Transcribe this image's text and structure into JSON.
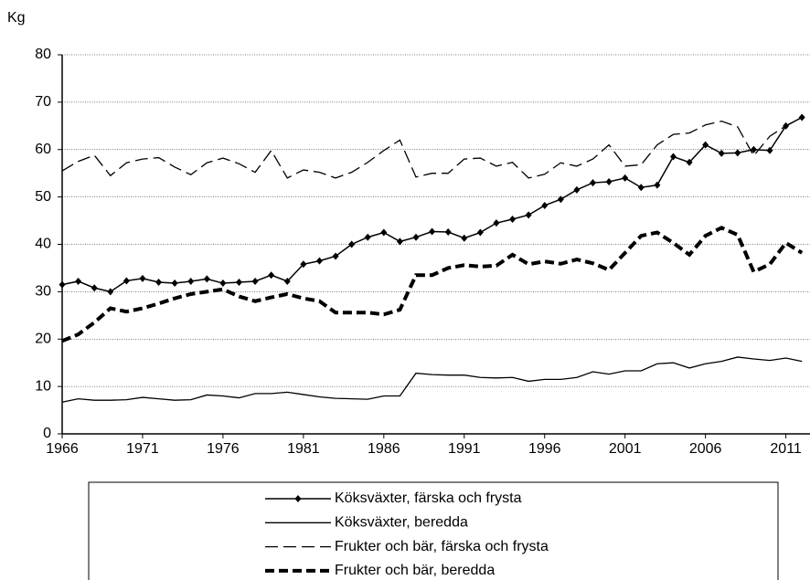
{
  "chart_data": {
    "type": "line",
    "y_label": "Kg",
    "x": [
      1966,
      1967,
      1968,
      1969,
      1970,
      1971,
      1972,
      1973,
      1974,
      1975,
      1976,
      1977,
      1978,
      1979,
      1980,
      1981,
      1982,
      1983,
      1984,
      1985,
      1986,
      1987,
      1988,
      1989,
      1990,
      1991,
      1992,
      1993,
      1994,
      1995,
      1996,
      1997,
      1998,
      1999,
      2000,
      2001,
      2002,
      2003,
      2004,
      2005,
      2006,
      2007,
      2008,
      2009,
      2010,
      2011,
      2012
    ],
    "xlim": [
      1966,
      2012.5
    ],
    "xticks": [
      1966,
      1971,
      1976,
      1981,
      1986,
      1991,
      1996,
      2001,
      2006,
      2011
    ],
    "ylim": [
      0,
      80
    ],
    "yticks": [
      0,
      10,
      20,
      30,
      40,
      50,
      60,
      70,
      80
    ],
    "grid": true,
    "series": [
      {
        "name": "Köksväxter, färska och frysta",
        "color": "#000000",
        "dash": "none",
        "width": 1.5,
        "marker": "diamond",
        "values": [
          31.5,
          32.2,
          30.8,
          30.0,
          32.3,
          32.8,
          32.0,
          31.8,
          32.2,
          32.7,
          31.8,
          32.0,
          32.2,
          33.5,
          32.2,
          35.8,
          36.5,
          37.5,
          40.0,
          41.5,
          42.5,
          40.6,
          41.5,
          42.7,
          42.6,
          41.3,
          42.5,
          44.5,
          45.3,
          46.2,
          48.2,
          49.5,
          51.5,
          53.0,
          53.2,
          54.0,
          52.0,
          52.5,
          58.5,
          57.3,
          61.0,
          59.2,
          59.3,
          60.0,
          59.8,
          65.0,
          66.8
        ]
      },
      {
        "name": "Köksväxter, beredda",
        "color": "#000000",
        "dash": "none",
        "width": 1.3,
        "marker": "none",
        "values": [
          6.7,
          7.4,
          7.1,
          7.1,
          7.2,
          7.7,
          7.4,
          7.1,
          7.2,
          8.2,
          8.0,
          7.6,
          8.5,
          8.5,
          8.8,
          8.3,
          7.8,
          7.5,
          7.4,
          7.3,
          8.0,
          8.0,
          12.8,
          12.5,
          12.4,
          12.4,
          11.9,
          11.8,
          11.9,
          11.1,
          11.5,
          11.5,
          11.9,
          13.1,
          12.6,
          13.3,
          13.3,
          14.8,
          15.0,
          13.9,
          14.8,
          15.3,
          16.2,
          15.8,
          15.5,
          16.0,
          15.3
        ]
      },
      {
        "name": "Frukter och bär, färska och frysta",
        "color": "#000000",
        "dash": "14 6",
        "width": 1.3,
        "marker": "none",
        "values": [
          55.5,
          57.5,
          58.8,
          54.5,
          57.2,
          58.0,
          58.3,
          56.3,
          54.7,
          57.2,
          58.2,
          57.0,
          55.2,
          59.8,
          54.0,
          55.7,
          55.2,
          54.0,
          55.2,
          57.3,
          59.8,
          62.0,
          54.2,
          55.0,
          55.0,
          58.0,
          58.2,
          56.5,
          57.3,
          54.0,
          54.8,
          57.2,
          56.5,
          58.0,
          61.0,
          56.5,
          56.8,
          61.0,
          63.2,
          63.5,
          65.2,
          66.0,
          64.8,
          58.7,
          62.8,
          65.0,
          66.8
        ]
      },
      {
        "name": "Frukter och bär, beredda",
        "color": "#000000",
        "dash": "10 5",
        "width": 4,
        "marker": "none",
        "values": [
          19.6,
          21.0,
          23.5,
          26.5,
          25.8,
          26.5,
          27.5,
          28.6,
          29.5,
          30.0,
          30.5,
          29.0,
          28.0,
          28.8,
          29.5,
          28.6,
          28.0,
          25.6,
          25.6,
          25.6,
          25.2,
          26.2,
          33.5,
          33.5,
          35.0,
          35.6,
          35.3,
          35.5,
          37.8,
          35.8,
          36.4,
          35.9,
          36.8,
          36.0,
          34.6,
          38.2,
          41.8,
          42.5,
          40.3,
          37.8,
          41.8,
          43.5,
          42.0,
          34.2,
          35.8,
          40.3,
          38.2
        ]
      }
    ]
  }
}
